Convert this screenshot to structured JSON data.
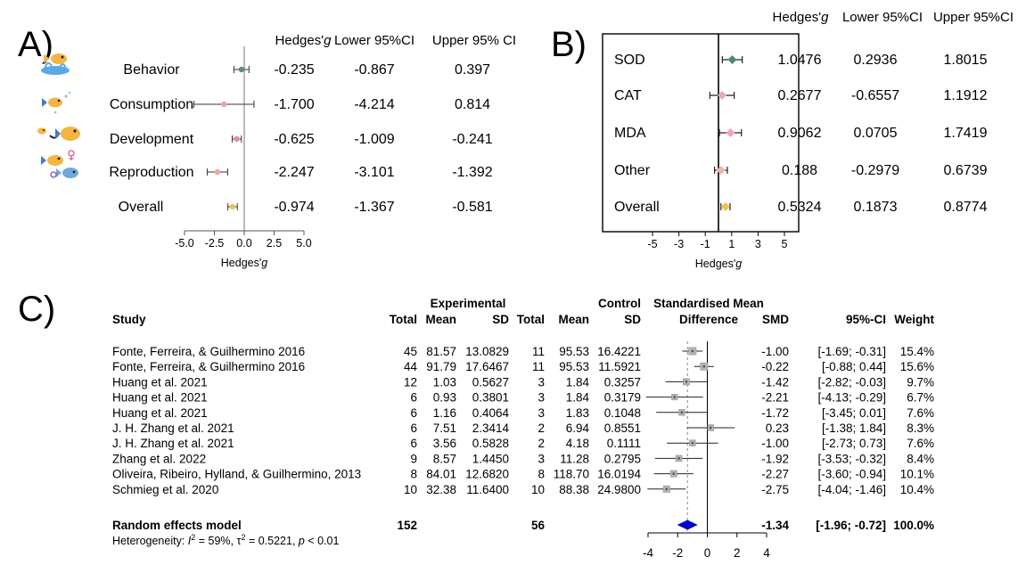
{
  "panels": {
    "a_label": "A)",
    "b_label": "B)",
    "c_label": "C)"
  },
  "chart_data": [
    {
      "panel": "A",
      "type": "forest",
      "columns": [
        "Hedges'g",
        "Lower 95%CI",
        "Upper 95% CI"
      ],
      "rows": [
        {
          "label": "Behavior",
          "g": -0.235,
          "lower": -0.867,
          "upper": 0.397,
          "g_text": "-0.235",
          "lower_text": "-0.867",
          "upper_text": "0.397",
          "color": "#5e8f7a",
          "icon": "fish-splash-icon"
        },
        {
          "label": "Consumption",
          "g": -1.7,
          "lower": -4.214,
          "upper": 0.814,
          "g_text": "-1.700",
          "lower_text": "-4.214",
          "upper_text": "0.814",
          "color": "#e8a3b8",
          "icon": "fish-bubbles-icon"
        },
        {
          "label": "Development",
          "g": -0.625,
          "lower": -1.009,
          "upper": -0.241,
          "g_text": "-0.625",
          "lower_text": "-1.009",
          "upper_text": "-0.241",
          "color": "#d98fb0",
          "icon": "fish-growth-icon"
        },
        {
          "label": "Reproduction",
          "g": -2.247,
          "lower": -3.101,
          "upper": -1.392,
          "g_text": "-2.247",
          "lower_text": "-3.101",
          "upper_text": "-1.392",
          "color": "#f0a6a0",
          "icon": "fish-pair-gender-icon"
        },
        {
          "label": "Overall",
          "g": -0.974,
          "lower": -1.367,
          "upper": -0.581,
          "g_text": "-0.974",
          "lower_text": "-1.367",
          "upper_text": "-0.581",
          "color": "#f2c14e",
          "icon": ""
        }
      ],
      "xlabel": "Hedges'g",
      "xlim": [
        -5,
        5
      ],
      "xticks": [
        -5,
        -2.5,
        0,
        2.5,
        5
      ],
      "xtick_labels": [
        "-5.0",
        "-2.5",
        "0.0",
        "2.5",
        "5.0"
      ]
    },
    {
      "panel": "B",
      "type": "forest",
      "columns": [
        "Hedges'g",
        "Lower 95%CI",
        "Upper 95%CI"
      ],
      "rows": [
        {
          "label": "SOD",
          "g": 1.0476,
          "lower": 0.2936,
          "upper": 1.8015,
          "g_text": "1.0476",
          "lower_text": "0.2936",
          "upper_text": "1.8015",
          "color": "#4f8a6f"
        },
        {
          "label": "CAT",
          "g": 0.2677,
          "lower": -0.6557,
          "upper": 1.1912,
          "g_text": "0.2677",
          "lower_text": "-0.6557",
          "upper_text": "1.1912",
          "color": "#e7a8c4"
        },
        {
          "label": "MDA",
          "g": 0.9062,
          "lower": 0.0705,
          "upper": 1.7419,
          "g_text": "0.9062",
          "lower_text": "0.0705",
          "upper_text": "1.7419",
          "color": "#f4a2b4"
        },
        {
          "label": "Other",
          "g": 0.188,
          "lower": -0.2979,
          "upper": 0.6739,
          "g_text": "0.188",
          "lower_text": "-0.2979",
          "upper_text": "0.6739",
          "color": "#f6b2a8"
        },
        {
          "label": "Overall",
          "g": 0.5324,
          "lower": 0.1873,
          "upper": 0.8774,
          "g_text": "0.5324",
          "lower_text": "0.1873",
          "upper_text": "0.8774",
          "color": "#f2c14e"
        }
      ],
      "xlabel": "Hedges'g",
      "xlim": [
        -5,
        5
      ],
      "xticks": [
        -5,
        -3,
        -1,
        1,
        3,
        5
      ],
      "xtick_labels": [
        "-5",
        "-3",
        "-1",
        "1",
        "3",
        "5"
      ]
    },
    {
      "panel": "C",
      "type": "forest-meta",
      "header_group": {
        "experimental": "Experimental",
        "control": "Control",
        "smd_title_1": "Standardised Mean",
        "smd_title_2": "Difference"
      },
      "columns": {
        "study": "Study",
        "e_total": "Total",
        "e_mean": "Mean",
        "e_sd": "SD",
        "c_total": "Total",
        "c_mean": "Mean",
        "c_sd": "SD",
        "smd": "SMD",
        "ci": "95%-CI",
        "weight": "Weight"
      },
      "studies": [
        {
          "study": "Fonte, Ferreira, & Guilhermino 2016",
          "e_total": "45",
          "e_mean": "81.57",
          "e_sd": "13.0829",
          "c_total": "11",
          "c_mean": "95.53",
          "c_sd": "16.4221",
          "smd": -1.0,
          "lower": -1.69,
          "upper": -0.31,
          "smd_text": "-1.00",
          "ci_text": "[-1.69; -0.31]",
          "weight": 15.4,
          "weight_text": "15.4%"
        },
        {
          "study": "Fonte, Ferreira, & Guilhermino 2016",
          "e_total": "44",
          "e_mean": "91.79",
          "e_sd": "17.6467",
          "c_total": "11",
          "c_mean": "95.53",
          "c_sd": "11.5921",
          "smd": -0.22,
          "lower": -0.88,
          "upper": 0.44,
          "smd_text": "-0.22",
          "ci_text": "[-0.88; 0.44]",
          "weight": 15.6,
          "weight_text": "15.6%"
        },
        {
          "study": "Huang et al. 2021",
          "e_total": "12",
          "e_mean": "1.03",
          "e_sd": "0.5627",
          "c_total": "3",
          "c_mean": "1.84",
          "c_sd": "0.3257",
          "smd": -1.42,
          "lower": -2.82,
          "upper": -0.03,
          "smd_text": "-1.42",
          "ci_text": "[-2.82; -0.03]",
          "weight": 9.7,
          "weight_text": "9.7%"
        },
        {
          "study": "Huang et al. 2021",
          "e_total": "6",
          "e_mean": "0.93",
          "e_sd": "0.3801",
          "c_total": "3",
          "c_mean": "1.84",
          "c_sd": "0.3179",
          "smd": -2.21,
          "lower": -4.13,
          "upper": -0.29,
          "smd_text": "-2.21",
          "ci_text": "[-4.13; -0.29]",
          "weight": 6.7,
          "weight_text": "6.7%"
        },
        {
          "study": "Huang et al. 2021",
          "e_total": "6",
          "e_mean": "1.16",
          "e_sd": "0.4064",
          "c_total": "3",
          "c_mean": "1.83",
          "c_sd": "0.1048",
          "smd": -1.72,
          "lower": -3.45,
          "upper": 0.01,
          "smd_text": "-1.72",
          "ci_text": "[-3.45; 0.01]",
          "weight": 7.6,
          "weight_text": "7.6%"
        },
        {
          "study": "J. H. Zhang et al. 2021",
          "e_total": "6",
          "e_mean": "7.51",
          "e_sd": "2.3414",
          "c_total": "2",
          "c_mean": "6.94",
          "c_sd": "0.8551",
          "smd": 0.23,
          "lower": -1.38,
          "upper": 1.84,
          "smd_text": "0.23",
          "ci_text": "[-1.38; 1.84]",
          "weight": 8.3,
          "weight_text": "8.3%"
        },
        {
          "study": "J. H. Zhang et al. 2021",
          "e_total": "6",
          "e_mean": "3.56",
          "e_sd": "0.5828",
          "c_total": "2",
          "c_mean": "4.18",
          "c_sd": "0.1111",
          "smd": -1.0,
          "lower": -2.73,
          "upper": 0.73,
          "smd_text": "-1.00",
          "ci_text": "[-2.73; 0.73]",
          "weight": 7.6,
          "weight_text": "7.6%"
        },
        {
          "study": "Zhang et al. 2022",
          "e_total": "9",
          "e_mean": "8.57",
          "e_sd": "1.4450",
          "c_total": "3",
          "c_mean": "11.28",
          "c_sd": "0.2795",
          "smd": -1.92,
          "lower": -3.53,
          "upper": -0.32,
          "smd_text": "-1.92",
          "ci_text": "[-3.53; -0.32]",
          "weight": 8.4,
          "weight_text": "8.4%"
        },
        {
          "study": "Oliveira, Ribeiro, Hylland, & Guilhermino, 2013",
          "e_total": "8",
          "e_mean": "84.01",
          "e_sd": "12.6820",
          "c_total": "8",
          "c_mean": "118.70",
          "c_sd": "16.0194",
          "smd": -2.27,
          "lower": -3.6,
          "upper": -0.94,
          "smd_text": "-2.27",
          "ci_text": "[-3.60; -0.94]",
          "weight": 10.1,
          "weight_text": "10.1%"
        },
        {
          "study": "Schmieg et al. 2020",
          "e_total": "10",
          "e_mean": "32.38",
          "e_sd": "11.6400",
          "c_total": "10",
          "c_mean": "88.38",
          "c_sd": "24.9800",
          "smd": -2.75,
          "lower": -4.04,
          "upper": -1.46,
          "smd_text": "-2.75",
          "ci_text": "[-4.04; -1.46]",
          "weight": 10.4,
          "weight_text": "10.4%"
        }
      ],
      "summary": {
        "label": "Random effects model",
        "e_total": "152",
        "c_total": "56",
        "smd": -1.34,
        "lower": -1.96,
        "upper": -0.72,
        "smd_text": "-1.34",
        "ci_text": "[-1.96; -0.72]",
        "weight_text": "100.0%",
        "color": "#0000cc"
      },
      "heterogeneity": {
        "prefix": "Heterogeneity: ",
        "i2_symbol": "I",
        "i2_sup": "2",
        "i2_value": " = 59%, ",
        "tau_symbol": "τ",
        "tau_sup": "2",
        "tau_value": " = 0.5221, ",
        "p_symbol": "p",
        "p_value": " < 0.01"
      },
      "xlim": [
        -4,
        4
      ],
      "xticks": [
        -4,
        -2,
        0,
        2,
        4
      ],
      "xtick_labels": [
        "-4",
        "-2",
        "0",
        "2",
        "4"
      ]
    }
  ]
}
